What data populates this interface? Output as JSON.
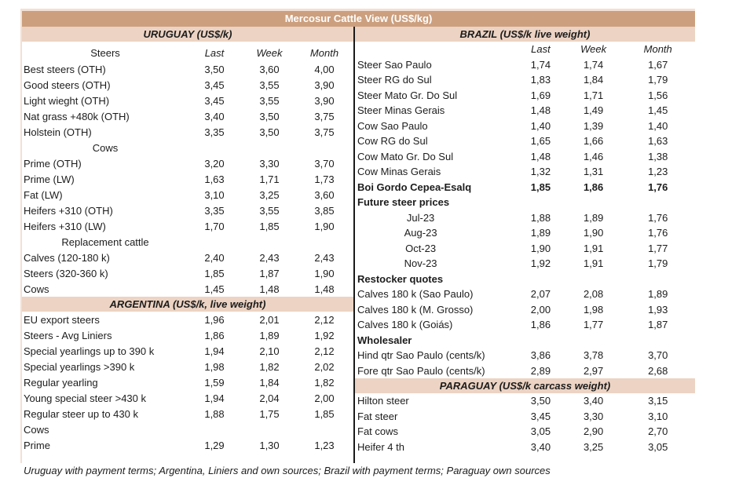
{
  "title": "Mercosur Cattle View (US$/kg)",
  "footnote": "Uruguay with payment terms; Argentina, Liniers and own sources; Brazil with payment terms; Paraguay own sources",
  "colors": {
    "title_bg": "#cc9f7e",
    "section_bg": "#ecd3c3",
    "divider": "#1a1a1a",
    "tick": "#c9c9c9",
    "text": "#1c1c1c"
  },
  "headers": {
    "last": "Last",
    "week": "Week",
    "month": "Month"
  },
  "left_rows": [
    {
      "type": "section",
      "label": "URUGUAY (US$/k)"
    },
    {
      "type": "colheader",
      "label": "Steers"
    },
    {
      "type": "data",
      "label": "Best steers (OTH)",
      "last": "3,50",
      "week": "3,60",
      "month": "4,00"
    },
    {
      "type": "data",
      "label": "Good steers (OTH)",
      "last": "3,45",
      "week": "3,55",
      "month": "3,90"
    },
    {
      "type": "data",
      "label": "Light wieght (OTH)",
      "last": "3,45",
      "week": "3,55",
      "month": "3,90"
    },
    {
      "type": "data",
      "label": "Nat grass +480k (OTH)",
      "last": "3,40",
      "week": "3,50",
      "month": "3,75"
    },
    {
      "type": "data",
      "label": "Holstein (OTH)",
      "last": "3,35",
      "week": "3,50",
      "month": "3,75"
    },
    {
      "type": "subheader",
      "label": "Cows"
    },
    {
      "type": "data",
      "label": "Prime (OTH)",
      "last": "3,20",
      "week": "3,30",
      "month": "3,70"
    },
    {
      "type": "data",
      "label": "Prime (LW)",
      "last": "1,63",
      "week": "1,71",
      "month": "1,73"
    },
    {
      "type": "data",
      "label": "Fat (LW)",
      "last": "3,10",
      "week": "3,25",
      "month": "3,60"
    },
    {
      "type": "data",
      "label": "Heifers +310 (OTH)",
      "last": "3,35",
      "week": "3,55",
      "month": "3,85"
    },
    {
      "type": "data",
      "label": "Heifers +310 (LW)",
      "last": "1,70",
      "week": "1,85",
      "month": "1,90"
    },
    {
      "type": "subheader",
      "label": "Replacement cattle",
      "ticks": true
    },
    {
      "type": "data",
      "label": "Calves (120-180 k)",
      "last": "2,40",
      "week": "2,43",
      "month": "2,43"
    },
    {
      "type": "data",
      "label": "Steers (320-360 k)",
      "last": "1,85",
      "week": "1,87",
      "month": "1,90"
    },
    {
      "type": "data",
      "label": "Cows",
      "last": "1,45",
      "week": "1,48",
      "month": "1,48"
    },
    {
      "type": "section",
      "label": "ARGENTINA (US$/k, live weight)"
    },
    {
      "type": "data",
      "label": "EU export steers",
      "last": "1,96",
      "week": "2,01",
      "month": "2,12"
    },
    {
      "type": "data",
      "label": "Steers - Avg Liniers",
      "last": "1,86",
      "week": "1,89",
      "month": "1,92"
    },
    {
      "type": "data",
      "label": "Special yearlings up to 390 k",
      "last": "1,94",
      "week": "2,10",
      "month": "2,12"
    },
    {
      "type": "data",
      "label": "Special yearlings >390 k",
      "last": "1,98",
      "week": "1,82",
      "month": "2,02"
    },
    {
      "type": "data",
      "label": "Regular yearling",
      "last": "1,59",
      "week": "1,84",
      "month": "1,82"
    },
    {
      "type": "data",
      "label": "Young special steer >430 k",
      "last": "1,94",
      "week": "2,04",
      "month": "2,00"
    },
    {
      "type": "data",
      "label": "Regular steer up to 430 k",
      "last": "1,88",
      "week": "1,75",
      "month": "1,85"
    },
    {
      "type": "label",
      "label": "Cows"
    },
    {
      "type": "data",
      "label": "Prime",
      "last": "1,29",
      "week": "1,30",
      "month": "1,23"
    },
    {
      "type": "empty",
      "label": ""
    }
  ],
  "right_rows": [
    {
      "type": "section",
      "label": "BRAZIL  (US$/k live weight)"
    },
    {
      "type": "colheader",
      "label": ""
    },
    {
      "type": "data",
      "label": "Steer Sao Paulo",
      "last": "1,74",
      "week": "1,74",
      "month": "1,67"
    },
    {
      "type": "data",
      "label": "Steer RG do Sul",
      "last": "1,83",
      "week": "1,84",
      "month": "1,79"
    },
    {
      "type": "data",
      "label": "Steer Mato Gr. Do Sul",
      "last": "1,69",
      "week": "1,71",
      "month": "1,56"
    },
    {
      "type": "data",
      "label": "Steer Minas Gerais",
      "last": "1,48",
      "week": "1,49",
      "month": "1,45"
    },
    {
      "type": "data",
      "label": "Cow Sao Paulo",
      "last": "1,40",
      "week": "1,39",
      "month": "1,40"
    },
    {
      "type": "data",
      "label": "Cow RG do Sul",
      "last": "1,65",
      "week": "1,66",
      "month": "1,63"
    },
    {
      "type": "data",
      "label": "Cow Mato Gr. Do Sul",
      "last": "1,48",
      "week": "1,46",
      "month": "1,38"
    },
    {
      "type": "data",
      "label": "Cow Minas Gerais",
      "last": "1,32",
      "week": "1,31",
      "month": "1,23"
    },
    {
      "type": "bolddata",
      "label": "Boi Gordo Cepea-Esalq",
      "last": "1,85",
      "week": "1,86",
      "month": "1,76"
    },
    {
      "type": "boldlabel",
      "label": "Future steer prices"
    },
    {
      "type": "month",
      "label": "Jul-23",
      "last": "1,88",
      "week": "1,89",
      "month": "1,76"
    },
    {
      "type": "month",
      "label": "Aug-23",
      "last": "1,89",
      "week": "1,90",
      "month": "1,76"
    },
    {
      "type": "month",
      "label": "Oct-23",
      "last": "1,90",
      "week": "1,91",
      "month": "1,77"
    },
    {
      "type": "month",
      "label": "Nov-23",
      "last": "1,92",
      "week": "1,91",
      "month": "1,79"
    },
    {
      "type": "boldlabel",
      "label": "Restocker quotes"
    },
    {
      "type": "data",
      "label": "Calves 180 k (Sao Paulo)",
      "last": "2,07",
      "week": "2,08",
      "month": "1,89"
    },
    {
      "type": "data",
      "label": "Calves 180 k (M. Grosso)",
      "last": "2,00",
      "week": "1,98",
      "month": "1,93"
    },
    {
      "type": "data",
      "label": "Calves 180 k (Goiás)",
      "last": "1,86",
      "week": "1,77",
      "month": "1,87"
    },
    {
      "type": "boldlabel",
      "label": "Wholesaler"
    },
    {
      "type": "data",
      "label": "Hind qtr Sao Paulo (cents/k)",
      "last": "3,86",
      "week": "3,78",
      "month": "3,70"
    },
    {
      "type": "data",
      "label": "Fore qtr Sao Paulo (cents/k)",
      "last": "2,89",
      "week": "2,97",
      "month": "2,68"
    },
    {
      "type": "section",
      "label": "PARAGUAY  (US$/k carcass weight)"
    },
    {
      "type": "data",
      "label": "Hilton steer",
      "last": "3,50",
      "week": "3,40",
      "month": "3,15"
    },
    {
      "type": "data",
      "label": "Fat steer",
      "underline": true,
      "last": "3,45",
      "week": "3,30",
      "month": "3,10"
    },
    {
      "type": "data",
      "label": "Fat cows",
      "last": "3,05",
      "week": "2,90",
      "month": "2,70"
    },
    {
      "type": "data",
      "label": "Heifer 4 th",
      "last": "3,40",
      "week": "3,25",
      "month": "3,05"
    },
    {
      "type": "empty",
      "label": ""
    }
  ]
}
